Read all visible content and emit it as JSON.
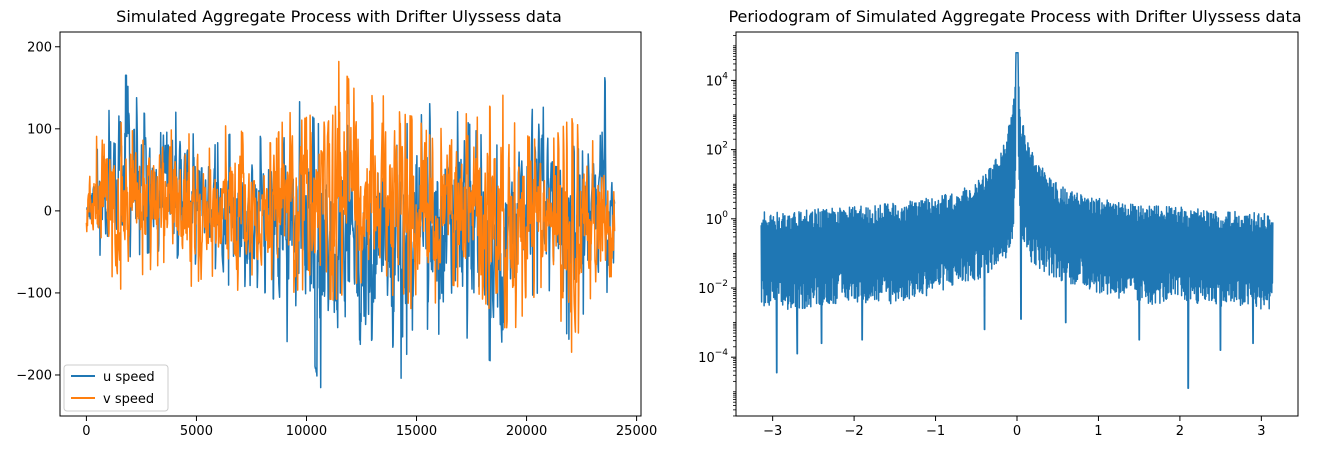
{
  "chart_data": [
    {
      "type": "line",
      "title": "Simulated Aggregate Process with Drifter Ulyssess data",
      "xlabel": "",
      "ylabel": "",
      "xlim": [
        -1200,
        25200
      ],
      "ylim": [
        -250,
        218
      ],
      "x_ticks": [
        0,
        5000,
        10000,
        15000,
        20000,
        25000
      ],
      "x_tick_labels": [
        "0",
        "5000",
        "10000",
        "15000",
        "20000",
        "25000"
      ],
      "y_ticks": [
        -200,
        -100,
        0,
        100,
        200
      ],
      "y_tick_labels": [
        "−200",
        "−100",
        "0",
        "100",
        "200"
      ],
      "grid": false,
      "legend_position": "lower-left",
      "series": [
        {
          "name": "u speed",
          "color": "#1f77b4",
          "x": [
            0,
            800,
            1800,
            2600,
            3600,
            4600,
            5600,
            6600,
            7600,
            8600,
            9100,
            9700,
            10600,
            11300,
            12400,
            13400,
            14300,
            15000,
            15800,
            16600,
            17800,
            18900,
            19500,
            20100,
            21000,
            22000,
            23000,
            23500,
            24000
          ],
          "y_high": [
            20,
            115,
            175,
            125,
            145,
            105,
            80,
            100,
            85,
            120,
            135,
            140,
            110,
            125,
            95,
            80,
            110,
            115,
            145,
            135,
            100,
            80,
            110,
            155,
            125,
            85,
            70,
            185,
            55
          ],
          "y_low": [
            -30,
            -65,
            -60,
            -55,
            -50,
            -70,
            -65,
            -100,
            -95,
            -115,
            -170,
            -100,
            -230,
            -180,
            -225,
            -120,
            -215,
            -130,
            -165,
            -140,
            -180,
            -205,
            -105,
            -110,
            -100,
            -170,
            -105,
            -125,
            -60
          ]
        },
        {
          "name": "v speed",
          "color": "#ff7f0e",
          "x": [
            0,
            800,
            1800,
            2600,
            3600,
            4600,
            5600,
            6600,
            7600,
            8600,
            9100,
            9700,
            10600,
            11300,
            12400,
            13400,
            14300,
            15000,
            15800,
            16600,
            17800,
            18900,
            19500,
            20100,
            21000,
            22000,
            23000,
            23500,
            24000
          ],
          "y_high": [
            55,
            125,
            110,
            90,
            105,
            100,
            80,
            120,
            80,
            90,
            130,
            115,
            130,
            200,
            145,
            150,
            125,
            120,
            90,
            130,
            120,
            150,
            110,
            95,
            85,
            120,
            90,
            85,
            20
          ],
          "y_low": [
            -45,
            -70,
            -110,
            -80,
            -65,
            -100,
            -80,
            -110,
            -80,
            -90,
            -110,
            -100,
            -110,
            -115,
            -90,
            -120,
            -100,
            -140,
            -120,
            -95,
            -105,
            -150,
            -150,
            -120,
            -85,
            -185,
            -105,
            -120,
            -125
          ]
        }
      ]
    },
    {
      "type": "line",
      "title": "Periodogram of Simulated Aggregate Process with Drifter Ulyssess data",
      "xlabel": "",
      "ylabel": "",
      "xlim": [
        -3.45,
        3.45
      ],
      "ylim_log10": [
        -5.7,
        5.4
      ],
      "y_scale": "log",
      "x_ticks": [
        -3,
        -2,
        -1,
        0,
        1,
        2,
        3
      ],
      "x_tick_labels": [
        "−3",
        "−2",
        "−1",
        "0",
        "1",
        "2",
        "3"
      ],
      "y_tick_exponents": [
        -4,
        -2,
        0,
        2,
        4
      ],
      "y_tick_labels": [
        "10",
        "10",
        "10",
        "10",
        "10"
      ],
      "y_tick_superscripts": [
        "−4",
        "−2",
        "0",
        "2",
        "4"
      ],
      "grid": false,
      "series": [
        {
          "name": "",
          "color": "#1f77b4",
          "x": [
            -3.14,
            -2.8,
            -2.4,
            -2.0,
            -1.6,
            -1.2,
            -0.8,
            -0.5,
            -0.3,
            -0.15,
            -0.05,
            0.0,
            0.05,
            0.15,
            0.3,
            0.5,
            0.8,
            1.2,
            1.6,
            2.0,
            2.4,
            2.8,
            3.14
          ],
          "upper_log10": [
            0.2,
            0.2,
            0.3,
            0.35,
            0.45,
            0.55,
            0.75,
            1.1,
            1.6,
            2.2,
            3.2,
            4.8,
            3.0,
            2.1,
            1.5,
            1.0,
            0.7,
            0.5,
            0.4,
            0.35,
            0.25,
            0.2,
            0.15
          ],
          "lower_log10": [
            -2.6,
            -2.7,
            -2.5,
            -2.4,
            -2.5,
            -2.3,
            -2.0,
            -1.8,
            -1.5,
            -1.2,
            -0.6,
            2.0,
            -0.6,
            -1.2,
            -1.5,
            -1.8,
            -2.0,
            -2.3,
            -2.5,
            -2.4,
            -2.5,
            -2.6,
            -2.7
          ],
          "dips": [
            {
              "x": -2.95,
              "log10": -4.45
            },
            {
              "x": -2.7,
              "log10": -3.9
            },
            {
              "x": -2.4,
              "log10": -3.6
            },
            {
              "x": -1.9,
              "log10": -3.5
            },
            {
              "x": -0.4,
              "log10": -3.2
            },
            {
              "x": 0.05,
              "log10": -2.9
            },
            {
              "x": 0.6,
              "log10": -3.0
            },
            {
              "x": 1.5,
              "log10": -3.5
            },
            {
              "x": 2.1,
              "log10": -4.9
            },
            {
              "x": 2.5,
              "log10": -3.8
            },
            {
              "x": 2.9,
              "log10": -3.6
            }
          ]
        }
      ]
    }
  ]
}
